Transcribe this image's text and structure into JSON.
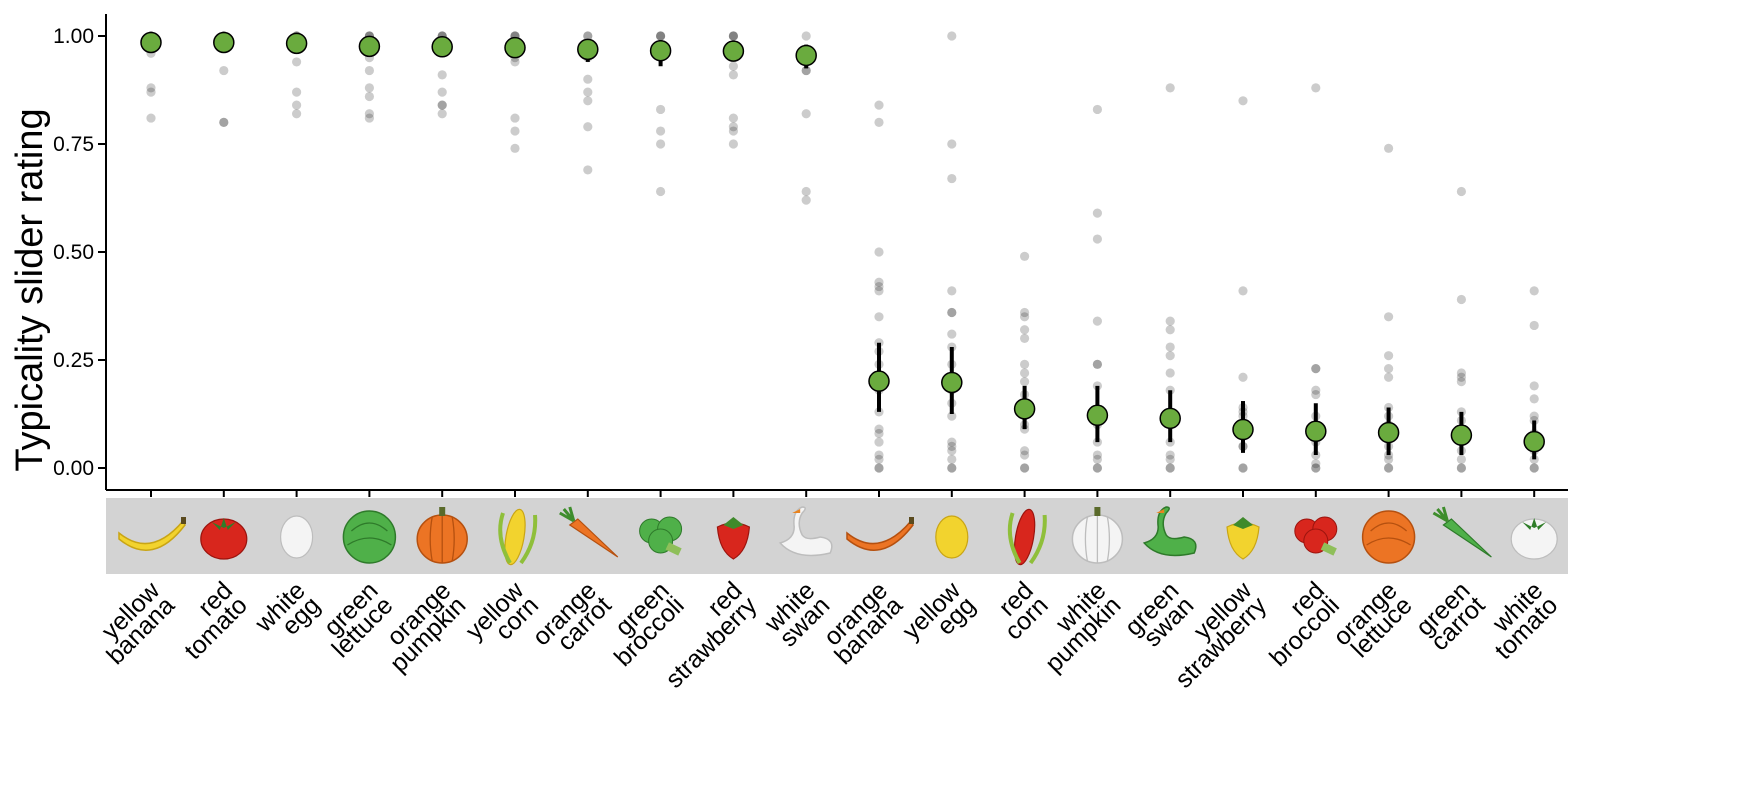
{
  "chart_data": {
    "type": "scatter",
    "title": "",
    "xlabel": "",
    "ylabel": "Typicality slider rating",
    "ylim": [
      0,
      1.05
    ],
    "y_ticks": [
      "0.00",
      "0.25",
      "0.50",
      "0.75",
      "1.00"
    ],
    "grid": false,
    "legend": "none",
    "categories": [
      {
        "color": "yellow",
        "object": "banana",
        "icon": "banana-icon"
      },
      {
        "color": "red",
        "object": "tomato",
        "icon": "tomato-icon"
      },
      {
        "color": "white",
        "object": "egg",
        "icon": "egg-icon"
      },
      {
        "color": "green",
        "object": "lettuce",
        "icon": "lettuce-icon"
      },
      {
        "color": "orange",
        "object": "pumpkin",
        "icon": "pumpkin-icon"
      },
      {
        "color": "yellow",
        "object": "corn",
        "icon": "corn-icon"
      },
      {
        "color": "orange",
        "object": "carrot",
        "icon": "carrot-icon"
      },
      {
        "color": "green",
        "object": "broccoli",
        "icon": "broccoli-icon"
      },
      {
        "color": "red",
        "object": "strawberry",
        "icon": "strawberry-icon"
      },
      {
        "color": "white",
        "object": "swan",
        "icon": "swan-icon"
      },
      {
        "color": "orange",
        "object": "banana",
        "icon": "banana-icon"
      },
      {
        "color": "yellow",
        "object": "egg",
        "icon": "egg-icon"
      },
      {
        "color": "red",
        "object": "corn",
        "icon": "corn-icon"
      },
      {
        "color": "white",
        "object": "pumpkin",
        "icon": "pumpkin-icon"
      },
      {
        "color": "green",
        "object": "swan",
        "icon": "swan-icon"
      },
      {
        "color": "yellow",
        "object": "strawberry",
        "icon": "strawberry-icon"
      },
      {
        "color": "red",
        "object": "broccoli",
        "icon": "broccoli-icon"
      },
      {
        "color": "orange",
        "object": "lettuce",
        "icon": "lettuce-icon"
      },
      {
        "color": "green",
        "object": "carrot",
        "icon": "carrot-icon"
      },
      {
        "color": "white",
        "object": "tomato",
        "icon": "tomato-icon"
      }
    ],
    "series": [
      {
        "role": "mean",
        "values": [
          0.985,
          0.985,
          0.983,
          0.976,
          0.975,
          0.973,
          0.969,
          0.966,
          0.965,
          0.955,
          0.201,
          0.198,
          0.137,
          0.122,
          0.115,
          0.089,
          0.085,
          0.082,
          0.076,
          0.061
        ]
      },
      {
        "role": "ci_low",
        "values": [
          0.97,
          0.965,
          0.965,
          0.955,
          0.955,
          0.953,
          0.94,
          0.93,
          0.945,
          0.925,
          0.13,
          0.125,
          0.09,
          0.06,
          0.06,
          0.035,
          0.03,
          0.03,
          0.03,
          0.02
        ]
      },
      {
        "role": "ci_high",
        "values": [
          1.0,
          1.0,
          0.998,
          0.993,
          0.992,
          0.99,
          0.99,
          0.99,
          0.985,
          0.98,
          0.29,
          0.28,
          0.19,
          0.19,
          0.18,
          0.155,
          0.15,
          0.14,
          0.13,
          0.11
        ]
      }
    ],
    "points": [
      [
        1.0,
        1.0,
        1.0,
        1.0,
        0.99,
        0.96,
        0.88,
        0.87,
        0.81
      ],
      [
        1.0,
        1.0,
        1.0,
        1.0,
        0.99,
        0.92,
        0.8,
        0.8
      ],
      [
        1.0,
        1.0,
        1.0,
        0.99,
        0.94,
        0.87,
        0.84,
        0.82
      ],
      [
        1.0,
        1.0,
        1.0,
        0.98,
        0.95,
        0.92,
        0.88,
        0.86,
        0.82,
        0.81
      ],
      [
        1.0,
        1.0,
        1.0,
        0.99,
        0.91,
        0.87,
        0.84,
        0.84,
        0.82
      ],
      [
        1.0,
        1.0,
        1.0,
        0.98,
        0.95,
        0.94,
        0.81,
        0.78,
        0.74
      ],
      [
        1.0,
        1.0,
        0.95,
        0.9,
        0.87,
        0.85,
        0.79,
        0.69
      ],
      [
        1.0,
        1.0,
        1.0,
        0.98,
        0.83,
        0.78,
        0.75,
        0.64
      ],
      [
        1.0,
        1.0,
        1.0,
        0.96,
        0.93,
        0.91,
        0.81,
        0.79,
        0.78,
        0.75
      ],
      [
        1.0,
        0.97,
        0.92,
        0.92,
        0.82,
        0.64,
        0.62
      ],
      [
        0.84,
        0.8,
        0.5,
        0.43,
        0.42,
        0.41,
        0.35,
        0.29,
        0.27,
        0.24,
        0.18,
        0.13,
        0.09,
        0.08,
        0.06,
        0.03,
        0.02,
        0.0,
        0.0
      ],
      [
        1.0,
        0.75,
        0.67,
        0.41,
        0.36,
        0.36,
        0.31,
        0.28,
        0.24,
        0.18,
        0.15,
        0.12,
        0.06,
        0.05,
        0.04,
        0.02,
        0.0,
        0.0
      ],
      [
        0.49,
        0.36,
        0.35,
        0.32,
        0.3,
        0.24,
        0.22,
        0.2,
        0.17,
        0.15,
        0.12,
        0.1,
        0.09,
        0.04,
        0.03,
        0.0,
        0.0
      ],
      [
        0.83,
        0.59,
        0.53,
        0.34,
        0.24,
        0.24,
        0.19,
        0.13,
        0.1,
        0.06,
        0.03,
        0.02,
        0.0,
        0.0
      ],
      [
        0.88,
        0.34,
        0.32,
        0.28,
        0.26,
        0.22,
        0.18,
        0.12,
        0.1,
        0.06,
        0.03,
        0.02,
        0.0,
        0.0
      ],
      [
        0.85,
        0.41,
        0.21,
        0.14,
        0.13,
        0.12,
        0.05,
        0.05,
        0.0,
        0.0
      ],
      [
        0.88,
        0.23,
        0.23,
        0.18,
        0.17,
        0.12,
        0.08,
        0.06,
        0.03,
        0.01,
        0.0,
        0.0
      ],
      [
        0.74,
        0.35,
        0.26,
        0.23,
        0.21,
        0.14,
        0.12,
        0.1,
        0.07,
        0.05,
        0.03,
        0.02,
        0.0,
        0.0
      ],
      [
        0.64,
        0.39,
        0.22,
        0.21,
        0.2,
        0.13,
        0.11,
        0.08,
        0.04,
        0.02,
        0.0,
        0.0
      ],
      [
        0.41,
        0.33,
        0.19,
        0.16,
        0.12,
        0.11,
        0.08,
        0.06,
        0.04,
        0.02,
        0.0,
        0.0
      ]
    ]
  },
  "colors": {
    "mean_fill": "#6aab3e",
    "mean_stroke": "#000000",
    "point_fill": "#000000",
    "errorbar": "#000000",
    "image_strip": "#d3d3d3",
    "axis": "#000000"
  }
}
